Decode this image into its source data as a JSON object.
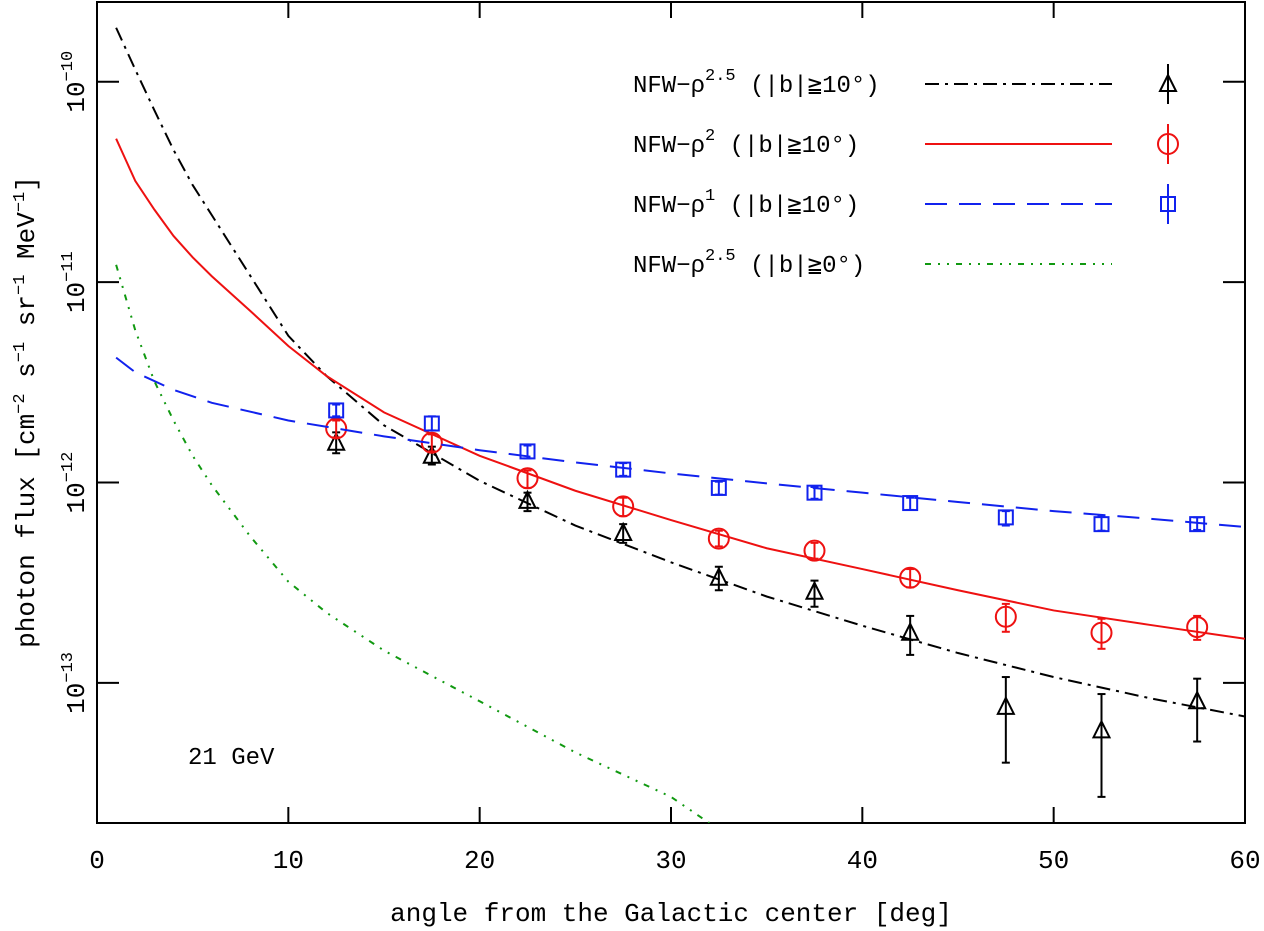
{
  "chart_data": {
    "type": "line",
    "xlabel": "angle from the Galactic center [deg]",
    "ylabel": [
      {
        "text": "photon flux [cm",
        "sup": "−2"
      },
      {
        "text": " s",
        "sup": "−1"
      },
      {
        "text": " sr",
        "sup": "−1"
      },
      {
        "text": " MeV",
        "sup": "−1"
      },
      {
        "text": "]"
      }
    ],
    "annotation": "21 GeV",
    "xlim": [
      0,
      60
    ],
    "xticks": [
      0,
      10,
      20,
      30,
      40,
      50,
      60
    ],
    "ylim": [
      2e-14,
      2.5e-10
    ],
    "ylog": true,
    "yticks": [
      {
        "value": 1e-10,
        "label": "10",
        "sup": "−10"
      },
      {
        "value": 1e-11,
        "label": "10",
        "sup": "−11"
      },
      {
        "value": 1e-12,
        "label": "10",
        "sup": "−12"
      },
      {
        "value": 1e-13,
        "label": "10",
        "sup": "−13"
      }
    ],
    "legend": "upper right",
    "series": [
      {
        "name": "NFW−ρ",
        "name_sup": "2.5",
        "name_suffix": " (|b|≧10°)",
        "color": "#000000",
        "line_style": "dash-dot",
        "x": [
          1,
          2,
          3,
          4,
          5,
          6,
          8,
          10,
          12,
          15,
          20,
          25,
          30,
          35,
          40,
          45,
          50,
          55,
          60
        ],
        "values": [
          1.86e-10,
          1.15e-10,
          7.2e-11,
          4.57e-11,
          3.05e-11,
          2.16e-11,
          1.08e-11,
          5.4e-12,
          3.4e-12,
          1.93e-12,
          1.02e-12,
          6.1e-13,
          4e-13,
          2.7e-13,
          1.93e-13,
          1.41e-13,
          1.07e-13,
          8.4e-14,
          6.8e-14
        ],
        "points": {
          "marker": "triangle",
          "x": [
            12.5,
            17.5,
            22.5,
            27.5,
            32.5,
            37.5,
            42.5,
            47.5,
            52.5,
            57.5
          ],
          "values": [
            1.58e-12,
            1.36e-12,
            8.1e-13,
            5.6e-13,
            3.35e-13,
            2.85e-13,
            1.78e-13,
            7.6e-14,
            5.8e-14,
            8.1e-14
          ],
          "upper": [
            1.78e-12,
            1.51e-12,
            8.9e-13,
            6.2e-13,
            3.8e-13,
            3.24e-13,
            2.16e-13,
            1.07e-13,
            8.8e-14,
            1.05e-13
          ],
          "lower": [
            1.4e-12,
            1.23e-12,
            7.2e-13,
            5e-13,
            2.9e-13,
            2.4e-13,
            1.38e-13,
            4e-14,
            2.7e-14,
            5.1e-14
          ]
        }
      },
      {
        "name": "NFW−ρ",
        "name_sup": "2",
        "name_suffix": " (|b|≧10°)",
        "color": "#ee1111",
        "line_style": "solid",
        "x": [
          1,
          2,
          3,
          4,
          5,
          6,
          8,
          10,
          12,
          15,
          20,
          25,
          30,
          35,
          40,
          45,
          50,
          55,
          60
        ],
        "values": [
          5.2e-11,
          3.2e-11,
          2.3e-11,
          1.7e-11,
          1.33e-11,
          1.07e-11,
          7.2e-12,
          4.8e-12,
          3.4e-12,
          2.24e-12,
          1.36e-12,
          9.1e-13,
          6.5e-13,
          4.7e-13,
          3.7e-13,
          2.9e-13,
          2.3e-13,
          1.95e-13,
          1.66e-13
        ],
        "points": {
          "marker": "circle",
          "x": [
            12.5,
            17.5,
            22.5,
            27.5,
            32.5,
            37.5,
            42.5,
            47.5,
            52.5,
            57.5
          ],
          "values": [
            1.86e-12,
            1.58e-12,
            1.05e-12,
            7.6e-13,
            5.25e-13,
            4.57e-13,
            3.35e-13,
            2.14e-13,
            1.78e-13,
            1.9e-13
          ],
          "upper": [
            2.04e-12,
            1.74e-12,
            1.15e-12,
            8.4e-13,
            5.75e-13,
            5e-13,
            3.7e-13,
            2.48e-13,
            2.09e-13,
            2.16e-13
          ],
          "lower": [
            1.68e-12,
            1.43e-12,
            9.4e-13,
            6.8e-13,
            4.8e-13,
            4.17e-13,
            3e-13,
            1.8e-13,
            1.48e-13,
            1.64e-13
          ]
        }
      },
      {
        "name": "NFW−ρ",
        "name_sup": "1",
        "name_suffix": " (|b|≧10°)",
        "color": "#1122ee",
        "line_style": "dash",
        "x": [
          1,
          2,
          4,
          6,
          10,
          15,
          20,
          25,
          30,
          35,
          40,
          45,
          50,
          55,
          60
        ],
        "values": [
          4.2e-12,
          3.55e-12,
          2.9e-12,
          2.5e-12,
          2.04e-12,
          1.7e-12,
          1.45e-12,
          1.26e-12,
          1.11e-12,
          9.9e-13,
          8.9e-13,
          8e-13,
          7.2e-13,
          6.6e-13,
          6e-13
        ],
        "points": {
          "marker": "square",
          "x": [
            12.5,
            17.5,
            22.5,
            27.5,
            32.5,
            37.5,
            42.5,
            47.5,
            52.5,
            57.5
          ],
          "values": [
            2.29e-12,
            1.97e-12,
            1.43e-12,
            1.16e-12,
            9.4e-13,
            8.9e-13,
            7.9e-13,
            6.7e-13,
            6.2e-13,
            6.2e-13
          ],
          "upper": [
            2.45e-12,
            2.14e-12,
            1.53e-12,
            1.25e-12,
            1.01e-12,
            9.5e-13,
            8.4e-13,
            7.2e-13,
            6.8e-13,
            6.7e-13
          ],
          "lower": [
            2.14e-12,
            1.82e-12,
            1.32e-12,
            1.08e-12,
            8.7e-13,
            8.3e-13,
            7.3e-13,
            6.1e-13,
            5.75e-13,
            5.8e-13
          ]
        }
      },
      {
        "name": "NFW−ρ",
        "name_sup": "2.5",
        "name_suffix": " (|b|≧0°)",
        "color": "#119911",
        "line_style": "dash-dot-dot",
        "x": [
          1,
          2,
          3,
          4,
          5,
          6,
          8,
          10,
          12,
          15,
          20,
          25,
          30,
          32
        ],
        "values": [
          1.22e-11,
          5.75e-12,
          3.2e-12,
          2.04e-12,
          1.36e-12,
          9.7e-13,
          5.4e-13,
          3.2e-13,
          2.24e-13,
          1.45e-13,
          8.1e-14,
          4.5e-14,
          2.7e-14,
          2e-14
        ]
      }
    ]
  }
}
